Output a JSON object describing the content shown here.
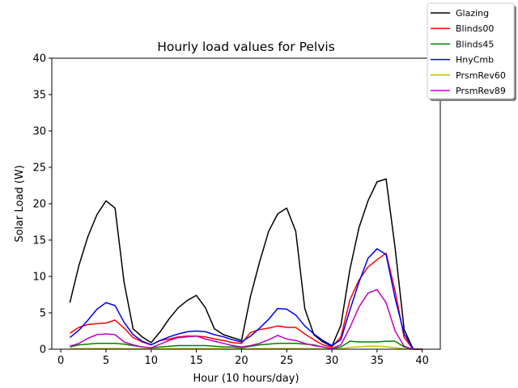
{
  "chart_data": {
    "type": "line",
    "title": "Hourly load values for Pelvis",
    "xlabel": "Hour (10 hours/day)",
    "ylabel": "Solar Load (W)",
    "xlim": [
      -1,
      42
    ],
    "ylim": [
      0,
      40
    ],
    "xticks": [
      0,
      5,
      10,
      15,
      20,
      25,
      30,
      35,
      40
    ],
    "yticks": [
      0,
      5,
      10,
      15,
      20,
      25,
      30,
      35,
      40
    ],
    "legend_position": "top-right, outside plot area",
    "grid": false,
    "x": [
      1,
      2,
      3,
      4,
      5,
      6,
      7,
      8,
      9,
      10,
      11,
      12,
      13,
      14,
      15,
      16,
      17,
      18,
      19,
      20,
      21,
      22,
      23,
      24,
      25,
      26,
      27,
      28,
      29,
      30,
      31,
      32,
      33,
      34,
      35,
      36,
      37,
      38,
      39,
      40
    ],
    "series": [
      {
        "name": "Glazing",
        "color": "#000000",
        "values": [
          6.4,
          11.5,
          15.5,
          18.5,
          20.4,
          19.4,
          9.2,
          2.8,
          1.7,
          0.9,
          2.4,
          4.2,
          5.7,
          6.7,
          7.4,
          5.7,
          2.8,
          2.0,
          1.6,
          1.2,
          7.3,
          12.0,
          16.2,
          18.6,
          19.4,
          16.2,
          5.6,
          2.0,
          1.0,
          0.4,
          3.3,
          11.0,
          16.7,
          20.4,
          23.0,
          23.4,
          13.9,
          2.7,
          0.0,
          0.0
        ]
      },
      {
        "name": "Blinds00",
        "color": "#ff0000",
        "values": [
          2.2,
          3.0,
          3.4,
          3.5,
          3.6,
          4.0,
          2.9,
          1.6,
          1.0,
          0.6,
          1.2,
          1.4,
          1.7,
          1.8,
          1.8,
          1.7,
          1.4,
          1.2,
          0.9,
          0.8,
          2.3,
          2.7,
          2.9,
          3.2,
          3.0,
          3.0,
          2.1,
          1.3,
          0.6,
          0.3,
          1.7,
          6.8,
          9.5,
          11.3,
          12.3,
          13.2,
          8.0,
          1.6,
          0.0,
          0.0
        ]
      },
      {
        "name": "Blinds45",
        "color": "#008000",
        "values": [
          0.3,
          0.6,
          0.7,
          0.8,
          0.8,
          0.8,
          0.7,
          0.5,
          0.3,
          0.2,
          0.3,
          0.4,
          0.5,
          0.5,
          0.5,
          0.5,
          0.4,
          0.3,
          0.3,
          0.2,
          0.4,
          0.6,
          0.7,
          0.8,
          0.8,
          0.8,
          0.7,
          0.6,
          0.3,
          0.1,
          0.3,
          1.1,
          1.0,
          1.0,
          1.0,
          1.1,
          1.1,
          0.3,
          0.0,
          0.0
        ]
      },
      {
        "name": "HnyCmb",
        "color": "#0000ff",
        "values": [
          1.6,
          2.6,
          4.0,
          5.5,
          6.4,
          6.0,
          3.7,
          2.0,
          1.1,
          0.6,
          1.2,
          1.7,
          2.1,
          2.4,
          2.5,
          2.4,
          2.0,
          1.7,
          1.3,
          1.0,
          1.8,
          2.9,
          4.1,
          5.6,
          5.5,
          4.7,
          3.2,
          2.1,
          1.2,
          0.5,
          1.3,
          5.4,
          9.2,
          12.5,
          13.8,
          13.0,
          7.0,
          2.1,
          0.0,
          0.0
        ]
      },
      {
        "name": "PrsmRev60",
        "color": "#bfbf00",
        "values": [
          0.05,
          0.08,
          0.1,
          0.1,
          0.1,
          0.1,
          0.08,
          0.06,
          0.05,
          0.03,
          0.05,
          0.06,
          0.07,
          0.08,
          0.08,
          0.07,
          0.06,
          0.05,
          0.04,
          0.03,
          0.05,
          0.07,
          0.08,
          0.1,
          0.1,
          0.1,
          0.08,
          0.06,
          0.04,
          0.02,
          0.05,
          0.25,
          0.35,
          0.4,
          0.4,
          0.35,
          0.2,
          0.05,
          0.0,
          0.0
        ]
      },
      {
        "name": "PrsmRev89",
        "color": "#bf00bf",
        "values": [
          0.4,
          0.8,
          1.5,
          2.0,
          2.1,
          2.0,
          1.0,
          0.6,
          0.3,
          0.2,
          0.7,
          1.2,
          1.6,
          1.7,
          1.8,
          1.4,
          1.1,
          0.8,
          0.5,
          0.3,
          0.5,
          0.8,
          1.3,
          1.9,
          1.4,
          1.2,
          0.8,
          0.5,
          0.3,
          0.1,
          0.6,
          3.0,
          5.8,
          7.7,
          8.2,
          6.4,
          2.5,
          0.4,
          0.0,
          0.0
        ]
      }
    ]
  }
}
